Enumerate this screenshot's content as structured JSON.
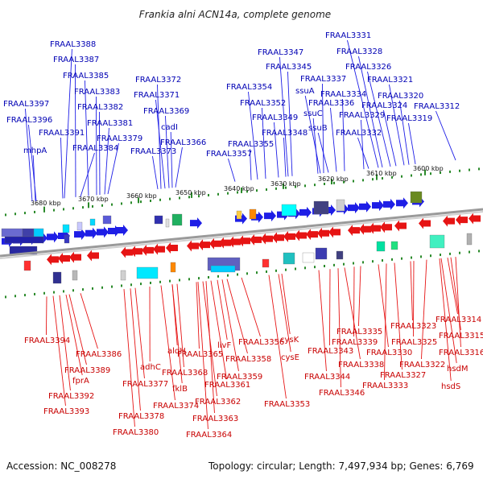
{
  "title": "Frankia alni ACN14a, complete genome",
  "footer": {
    "accession": "Accession: NC_008278",
    "summary": "Topology: circular; Length: 7,497,934 bp; Genes: 6,769"
  },
  "kbp_top": [
    "3680 kbp",
    "3670 kbp",
    "3660 kbp",
    "3650 kbp",
    "3640 kbp",
    "3630 kbp",
    "3620 kbp",
    "3610 kbp",
    "3600 kbp"
  ],
  "colors": {
    "top_gene": "#1e1ee6",
    "bottom_gene": "#e61414",
    "top_label": "#0000b4",
    "bottom_label": "#c80000",
    "backbone": "#9a9a9a",
    "tick": "#2a8a2a"
  },
  "top_labels": [
    "FRAAL3331",
    "FRAAL3388",
    "FRAAL3347",
    "FRAAL3328",
    "FRAAL3387",
    "FRAAL3345",
    "FRAAL3326",
    "FRAAL3385",
    "FRAAL3372",
    "FRAAL3337",
    "FRAAL3321",
    "FRAAL3354",
    "FRAAL3383",
    "ssuA",
    "FRAAL3371",
    "FRAAL3334",
    "FRAAL3320",
    "FRAAL3352",
    "FRAAL3397",
    "FRAAL3382",
    "FRAAL3336",
    "FRAAL3324",
    "FRAAL3312",
    "ssuC",
    "FRAAL3369",
    "FRAAL3396",
    "FRAAL3349",
    "FRAAL3329",
    "FRAAL3319",
    "FRAAL3381",
    "cadI",
    "ssuB",
    "FRAAL3391",
    "FRAAL3348",
    "FRAAL3332",
    "FRAAL3379",
    "FRAAL3366",
    "FRAAL3355",
    "FRAAL3384",
    "mhpA",
    "FRAAL3373",
    "FRAAL3357"
  ],
  "bottom_labels": [
    "FRAAL3314",
    "FRAAL3315",
    "FRAAL3323",
    "FRAAL3335",
    "FRAAL3316",
    "FRAAL3339",
    "FRAAL3325",
    "FRAAL3356",
    "FRAAL3394",
    "cysK",
    "FRAAL3343",
    "livF",
    "FRAAL3330",
    "aldH",
    "FRAAL3386",
    "FRAAL3365",
    "FRAAL3358",
    "cysE",
    "FRAAL3322",
    "hsdM",
    "FRAAL3338",
    "adhC",
    "FRAAL3389",
    "FRAAL3368",
    "FRAAL3327",
    "FRAAL3359",
    "fprA",
    "FRAAL3344",
    "FRAAL3377",
    "FRAAL3361",
    "hsdS",
    "FRAAL3333",
    "fklB",
    "FRAAL3346",
    "FRAAL3392",
    "FRAAL3362",
    "FRAAL3353",
    "FRAAL3374",
    "FRAAL3393",
    "FRAAL3378",
    "FRAAL3363",
    "FRAAL3380",
    "FRAAL3364"
  ]
}
